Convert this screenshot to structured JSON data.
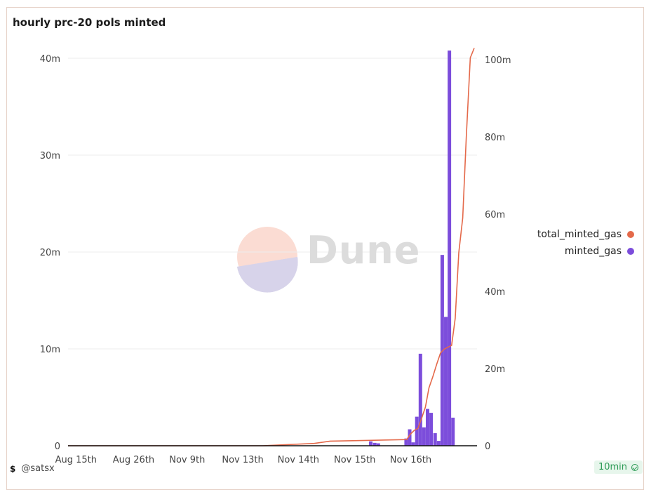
{
  "chart_data": {
    "type": "bar",
    "title": "hourly prc-20 pols minted",
    "x_tick_labels": [
      "Aug 15th",
      "Aug 26th",
      "Nov 9th",
      "Nov 13th",
      "Nov 14th",
      "Nov 15th",
      "Nov 16th"
    ],
    "y_left": {
      "ticks": [
        "0",
        "10m",
        "20m",
        "30m",
        "40m"
      ],
      "ylim": [
        0,
        40000000
      ]
    },
    "y_right": {
      "ticks": [
        "0",
        "20m",
        "40m",
        "60m",
        "80m",
        "100m"
      ],
      "ylim": [
        0,
        100000000
      ]
    },
    "grid": true,
    "legend_position": "right",
    "series": [
      {
        "name": "total_minted_gas",
        "type": "line",
        "axis": "right",
        "color": "#e4694a",
        "points": [
          [
            0,
            0
          ],
          [
            49.0,
            0
          ],
          [
            62.0,
            0.6
          ],
          [
            66.0,
            1.2
          ],
          [
            76.0,
            1.4
          ],
          [
            80.0,
            1.5
          ],
          [
            85.3,
            1.6
          ],
          [
            86.2,
            3.0
          ],
          [
            87.2,
            4.0
          ],
          [
            88.1,
            4.5
          ],
          [
            89.0,
            7.0
          ],
          [
            90.0,
            10.0
          ],
          [
            90.9,
            15.0
          ],
          [
            91.9,
            18.0
          ],
          [
            92.8,
            21.0
          ],
          [
            93.8,
            24.0
          ],
          [
            94.7,
            25.0
          ],
          [
            95.6,
            25.5
          ],
          [
            96.6,
            26.0
          ],
          [
            97.5,
            33.0
          ],
          [
            98.4,
            50.0
          ],
          [
            99.4,
            59.0
          ],
          [
            100.3,
            80.0
          ],
          [
            101.3,
            100.5
          ],
          [
            102.3,
            103.0
          ]
        ]
      },
      {
        "name": "minted_gas",
        "type": "bar",
        "axis": "left",
        "color": "#7c4ddb",
        "bars": [
          [
            75.8,
            0.45
          ],
          [
            76.8,
            0.3
          ],
          [
            77.7,
            0.25
          ],
          [
            84.7,
            0.75
          ],
          [
            85.6,
            1.7
          ],
          [
            86.5,
            0.35
          ],
          [
            87.4,
            3.0
          ],
          [
            88.3,
            9.5
          ],
          [
            89.2,
            1.9
          ],
          [
            90.1,
            3.8
          ],
          [
            91.0,
            3.4
          ],
          [
            92.0,
            1.3
          ],
          [
            92.9,
            0.5
          ],
          [
            93.8,
            19.7
          ],
          [
            94.7,
            13.3
          ],
          [
            95.6,
            40.8
          ],
          [
            96.5,
            2.9
          ]
        ]
      }
    ]
  },
  "footer": {
    "author_icon": "$",
    "author": "@satsx",
    "refresh": "10min"
  },
  "watermark": "Dune"
}
